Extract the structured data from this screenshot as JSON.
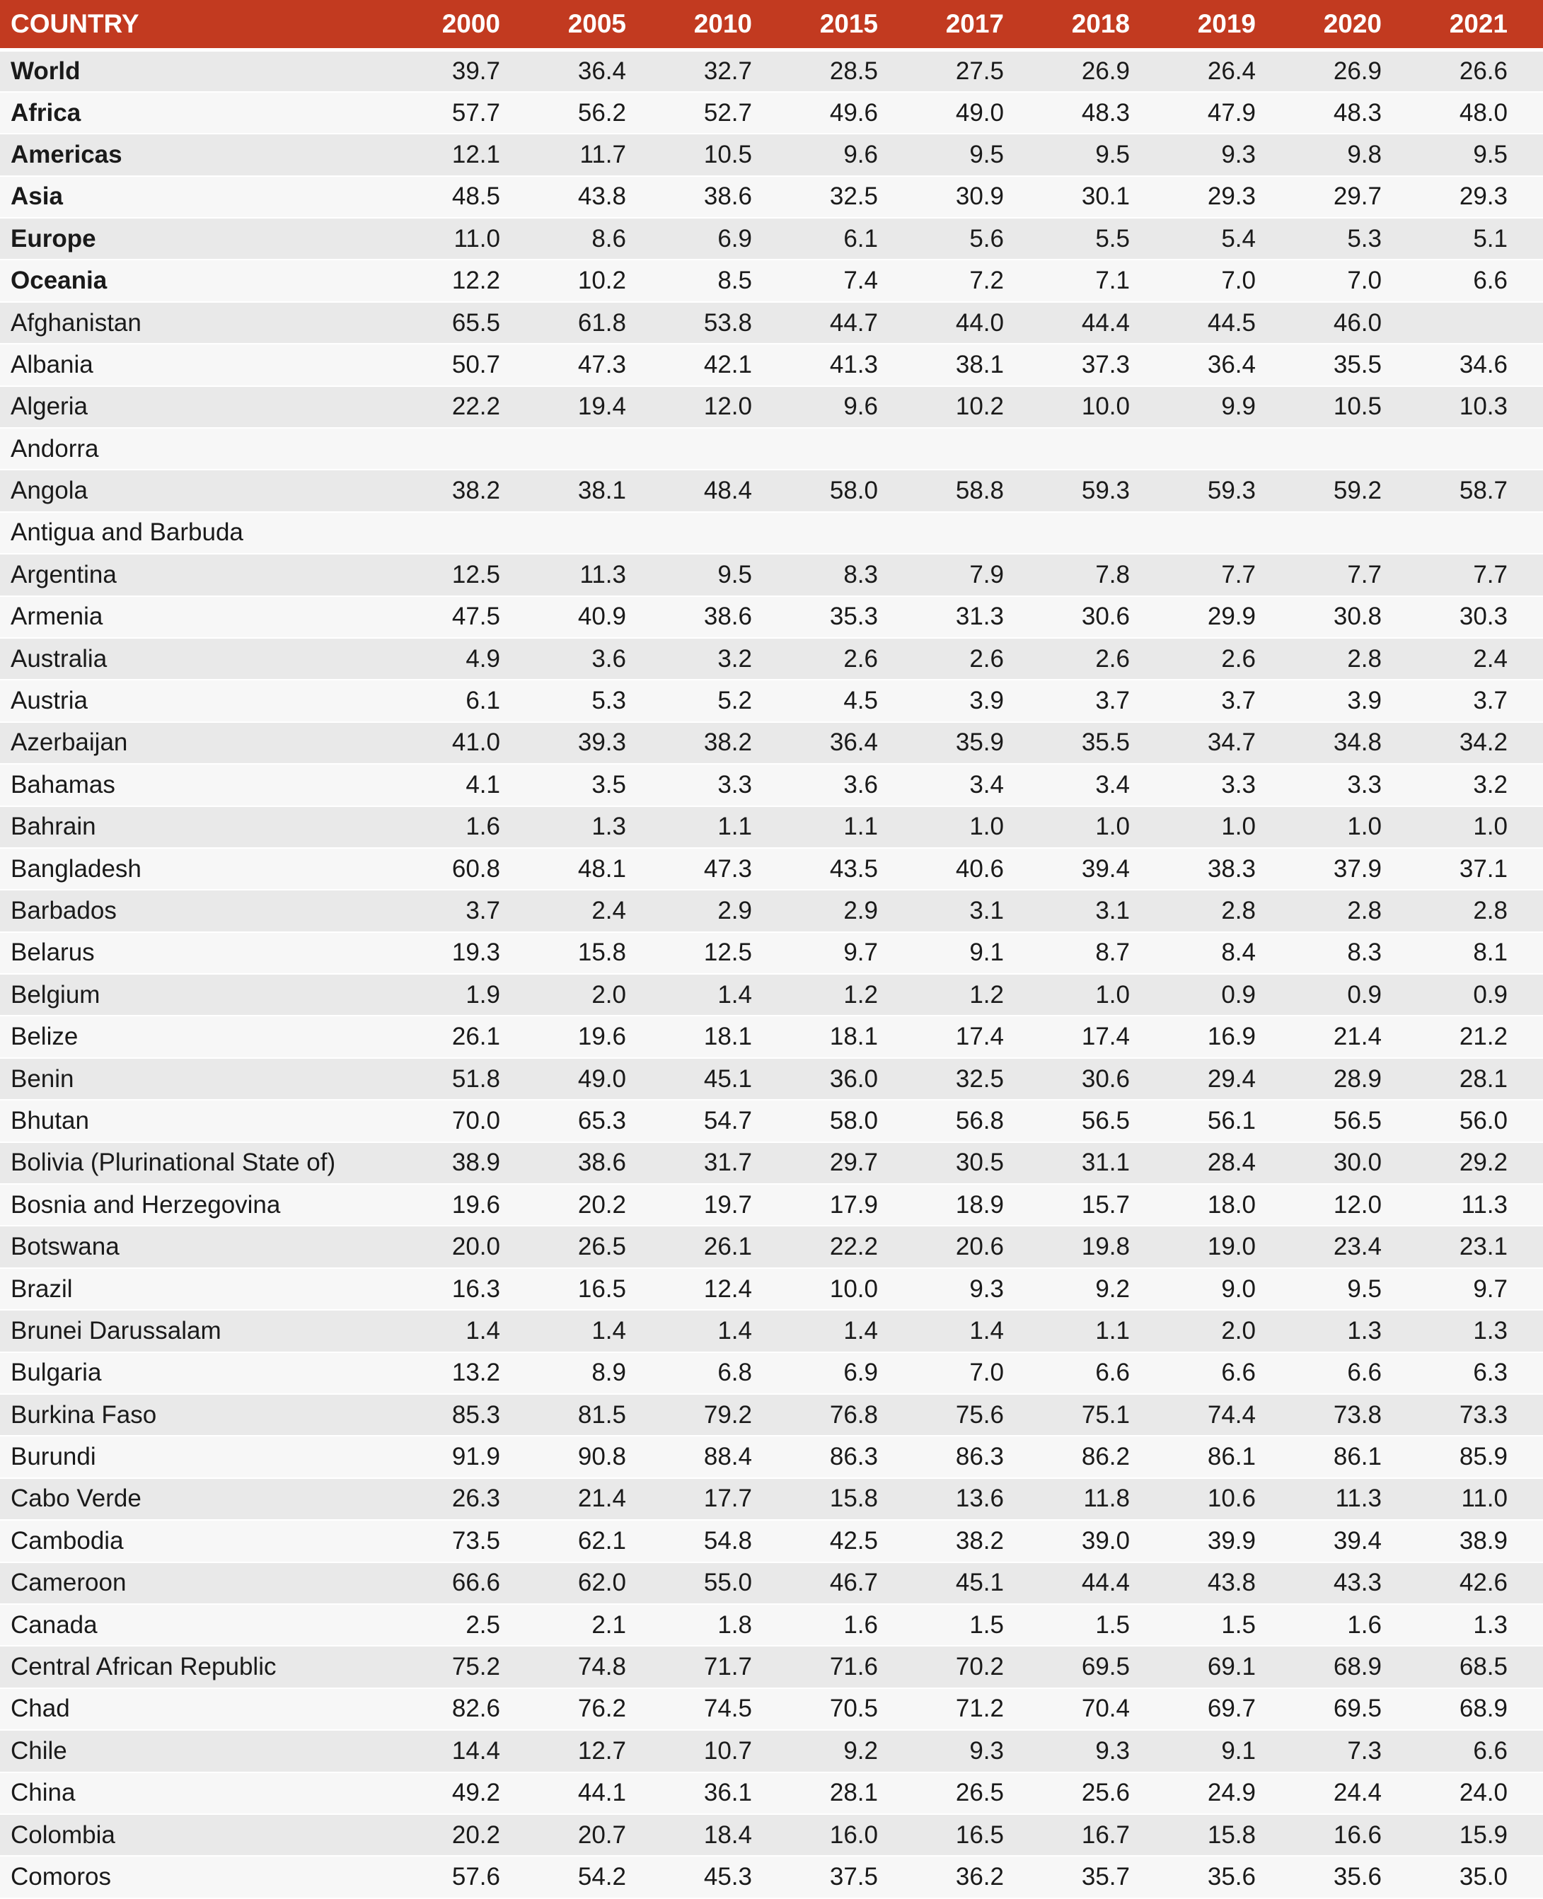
{
  "colors": {
    "header_bg": "#c23a20",
    "header_text": "#ffffff",
    "row_odd_bg": "#e9e9e9",
    "row_even_bg": "#f7f7f7",
    "body_text": "#1a1a1a"
  },
  "chart_data": {
    "type": "table",
    "country_label": "COUNTRY",
    "columns": [
      "2000",
      "2005",
      "2010",
      "2015",
      "2017",
      "2018",
      "2019",
      "2020",
      "2021"
    ],
    "rows": [
      {
        "name": "World",
        "bold": true,
        "values": [
          "39.7",
          "36.4",
          "32.7",
          "28.5",
          "27.5",
          "26.9",
          "26.4",
          "26.9",
          "26.6"
        ]
      },
      {
        "name": "Africa",
        "bold": true,
        "values": [
          "57.7",
          "56.2",
          "52.7",
          "49.6",
          "49.0",
          "48.3",
          "47.9",
          "48.3",
          "48.0"
        ]
      },
      {
        "name": "Americas",
        "bold": true,
        "values": [
          "12.1",
          "11.7",
          "10.5",
          "9.6",
          "9.5",
          "9.5",
          "9.3",
          "9.8",
          "9.5"
        ]
      },
      {
        "name": "Asia",
        "bold": true,
        "values": [
          "48.5",
          "43.8",
          "38.6",
          "32.5",
          "30.9",
          "30.1",
          "29.3",
          "29.7",
          "29.3"
        ]
      },
      {
        "name": "Europe",
        "bold": true,
        "values": [
          "11.0",
          "8.6",
          "6.9",
          "6.1",
          "5.6",
          "5.5",
          "5.4",
          "5.3",
          "5.1"
        ]
      },
      {
        "name": "Oceania",
        "bold": true,
        "values": [
          "12.2",
          "10.2",
          "8.5",
          "7.4",
          "7.2",
          "7.1",
          "7.0",
          "7.0",
          "6.6"
        ]
      },
      {
        "name": "Afghanistan",
        "bold": false,
        "values": [
          "65.5",
          "61.8",
          "53.8",
          "44.7",
          "44.0",
          "44.4",
          "44.5",
          "46.0",
          ""
        ]
      },
      {
        "name": "Albania",
        "bold": false,
        "values": [
          "50.7",
          "47.3",
          "42.1",
          "41.3",
          "38.1",
          "37.3",
          "36.4",
          "35.5",
          "34.6"
        ]
      },
      {
        "name": "Algeria",
        "bold": false,
        "values": [
          "22.2",
          "19.4",
          "12.0",
          "9.6",
          "10.2",
          "10.0",
          "9.9",
          "10.5",
          "10.3"
        ]
      },
      {
        "name": "Andorra",
        "bold": false,
        "values": [
          "",
          "",
          "",
          "",
          "",
          "",
          "",
          "",
          ""
        ]
      },
      {
        "name": "Angola",
        "bold": false,
        "values": [
          "38.2",
          "38.1",
          "48.4",
          "58.0",
          "58.8",
          "59.3",
          "59.3",
          "59.2",
          "58.7"
        ]
      },
      {
        "name": "Antigua and Barbuda",
        "bold": false,
        "values": [
          "",
          "",
          "",
          "",
          "",
          "",
          "",
          "",
          ""
        ]
      },
      {
        "name": "Argentina",
        "bold": false,
        "values": [
          "12.5",
          "11.3",
          "9.5",
          "8.3",
          "7.9",
          "7.8",
          "7.7",
          "7.7",
          "7.7"
        ]
      },
      {
        "name": "Armenia",
        "bold": false,
        "values": [
          "47.5",
          "40.9",
          "38.6",
          "35.3",
          "31.3",
          "30.6",
          "29.9",
          "30.8",
          "30.3"
        ]
      },
      {
        "name": "Australia",
        "bold": false,
        "values": [
          "4.9",
          "3.6",
          "3.2",
          "2.6",
          "2.6",
          "2.6",
          "2.6",
          "2.8",
          "2.4"
        ]
      },
      {
        "name": "Austria",
        "bold": false,
        "values": [
          "6.1",
          "5.3",
          "5.2",
          "4.5",
          "3.9",
          "3.7",
          "3.7",
          "3.9",
          "3.7"
        ]
      },
      {
        "name": "Azerbaijan",
        "bold": false,
        "values": [
          "41.0",
          "39.3",
          "38.2",
          "36.4",
          "35.9",
          "35.5",
          "34.7",
          "34.8",
          "34.2"
        ]
      },
      {
        "name": "Bahamas",
        "bold": false,
        "values": [
          "4.1",
          "3.5",
          "3.3",
          "3.6",
          "3.4",
          "3.4",
          "3.3",
          "3.3",
          "3.2"
        ]
      },
      {
        "name": "Bahrain",
        "bold": false,
        "values": [
          "1.6",
          "1.3",
          "1.1",
          "1.1",
          "1.0",
          "1.0",
          "1.0",
          "1.0",
          "1.0"
        ]
      },
      {
        "name": "Bangladesh",
        "bold": false,
        "values": [
          "60.8",
          "48.1",
          "47.3",
          "43.5",
          "40.6",
          "39.4",
          "38.3",
          "37.9",
          "37.1"
        ]
      },
      {
        "name": "Barbados",
        "bold": false,
        "values": [
          "3.7",
          "2.4",
          "2.9",
          "2.9",
          "3.1",
          "3.1",
          "2.8",
          "2.8",
          "2.8"
        ]
      },
      {
        "name": "Belarus",
        "bold": false,
        "values": [
          "19.3",
          "15.8",
          "12.5",
          "9.7",
          "9.1",
          "8.7",
          "8.4",
          "8.3",
          "8.1"
        ]
      },
      {
        "name": "Belgium",
        "bold": false,
        "values": [
          "1.9",
          "2.0",
          "1.4",
          "1.2",
          "1.2",
          "1.0",
          "0.9",
          "0.9",
          "0.9"
        ]
      },
      {
        "name": "Belize",
        "bold": false,
        "values": [
          "26.1",
          "19.6",
          "18.1",
          "18.1",
          "17.4",
          "17.4",
          "16.9",
          "21.4",
          "21.2"
        ]
      },
      {
        "name": "Benin",
        "bold": false,
        "values": [
          "51.8",
          "49.0",
          "45.1",
          "36.0",
          "32.5",
          "30.6",
          "29.4",
          "28.9",
          "28.1"
        ]
      },
      {
        "name": "Bhutan",
        "bold": false,
        "values": [
          "70.0",
          "65.3",
          "54.7",
          "58.0",
          "56.8",
          "56.5",
          "56.1",
          "56.5",
          "56.0"
        ]
      },
      {
        "name": "Bolivia (Plurinational State of)",
        "bold": false,
        "values": [
          "38.9",
          "38.6",
          "31.7",
          "29.7",
          "30.5",
          "31.1",
          "28.4",
          "30.0",
          "29.2"
        ]
      },
      {
        "name": "Bosnia and Herzegovina",
        "bold": false,
        "values": [
          "19.6",
          "20.2",
          "19.7",
          "17.9",
          "18.9",
          "15.7",
          "18.0",
          "12.0",
          "11.3"
        ]
      },
      {
        "name": "Botswana",
        "bold": false,
        "values": [
          "20.0",
          "26.5",
          "26.1",
          "22.2",
          "20.6",
          "19.8",
          "19.0",
          "23.4",
          "23.1"
        ]
      },
      {
        "name": "Brazil",
        "bold": false,
        "values": [
          "16.3",
          "16.5",
          "12.4",
          "10.0",
          "9.3",
          "9.2",
          "9.0",
          "9.5",
          "9.7"
        ]
      },
      {
        "name": "Brunei Darussalam",
        "bold": false,
        "values": [
          "1.4",
          "1.4",
          "1.4",
          "1.4",
          "1.4",
          "1.1",
          "2.0",
          "1.3",
          "1.3"
        ]
      },
      {
        "name": "Bulgaria",
        "bold": false,
        "values": [
          "13.2",
          "8.9",
          "6.8",
          "6.9",
          "7.0",
          "6.6",
          "6.6",
          "6.6",
          "6.3"
        ]
      },
      {
        "name": "Burkina Faso",
        "bold": false,
        "values": [
          "85.3",
          "81.5",
          "79.2",
          "76.8",
          "75.6",
          "75.1",
          "74.4",
          "73.8",
          "73.3"
        ]
      },
      {
        "name": "Burundi",
        "bold": false,
        "values": [
          "91.9",
          "90.8",
          "88.4",
          "86.3",
          "86.3",
          "86.2",
          "86.1",
          "86.1",
          "85.9"
        ]
      },
      {
        "name": "Cabo Verde",
        "bold": false,
        "values": [
          "26.3",
          "21.4",
          "17.7",
          "15.8",
          "13.6",
          "11.8",
          "10.6",
          "11.3",
          "11.0"
        ]
      },
      {
        "name": "Cambodia",
        "bold": false,
        "values": [
          "73.5",
          "62.1",
          "54.8",
          "42.5",
          "38.2",
          "39.0",
          "39.9",
          "39.4",
          "38.9"
        ]
      },
      {
        "name": "Cameroon",
        "bold": false,
        "values": [
          "66.6",
          "62.0",
          "55.0",
          "46.7",
          "45.1",
          "44.4",
          "43.8",
          "43.3",
          "42.6"
        ]
      },
      {
        "name": "Canada",
        "bold": false,
        "values": [
          "2.5",
          "2.1",
          "1.8",
          "1.6",
          "1.5",
          "1.5",
          "1.5",
          "1.6",
          "1.3"
        ]
      },
      {
        "name": "Central African Republic",
        "bold": false,
        "values": [
          "75.2",
          "74.8",
          "71.7",
          "71.6",
          "70.2",
          "69.5",
          "69.1",
          "68.9",
          "68.5"
        ]
      },
      {
        "name": "Chad",
        "bold": false,
        "values": [
          "82.6",
          "76.2",
          "74.5",
          "70.5",
          "71.2",
          "70.4",
          "69.7",
          "69.5",
          "68.9"
        ]
      },
      {
        "name": "Chile",
        "bold": false,
        "values": [
          "14.4",
          "12.7",
          "10.7",
          "9.2",
          "9.3",
          "9.3",
          "9.1",
          "7.3",
          "6.6"
        ]
      },
      {
        "name": "China",
        "bold": false,
        "values": [
          "49.2",
          "44.1",
          "36.1",
          "28.1",
          "26.5",
          "25.6",
          "24.9",
          "24.4",
          "24.0"
        ]
      },
      {
        "name": "Colombia",
        "bold": false,
        "values": [
          "20.2",
          "20.7",
          "18.4",
          "16.0",
          "16.5",
          "16.7",
          "15.8",
          "16.6",
          "15.9"
        ]
      },
      {
        "name": "Comoros",
        "bold": false,
        "values": [
          "57.6",
          "54.2",
          "45.3",
          "37.5",
          "36.2",
          "35.7",
          "35.6",
          "35.6",
          "35.0"
        ]
      }
    ]
  }
}
